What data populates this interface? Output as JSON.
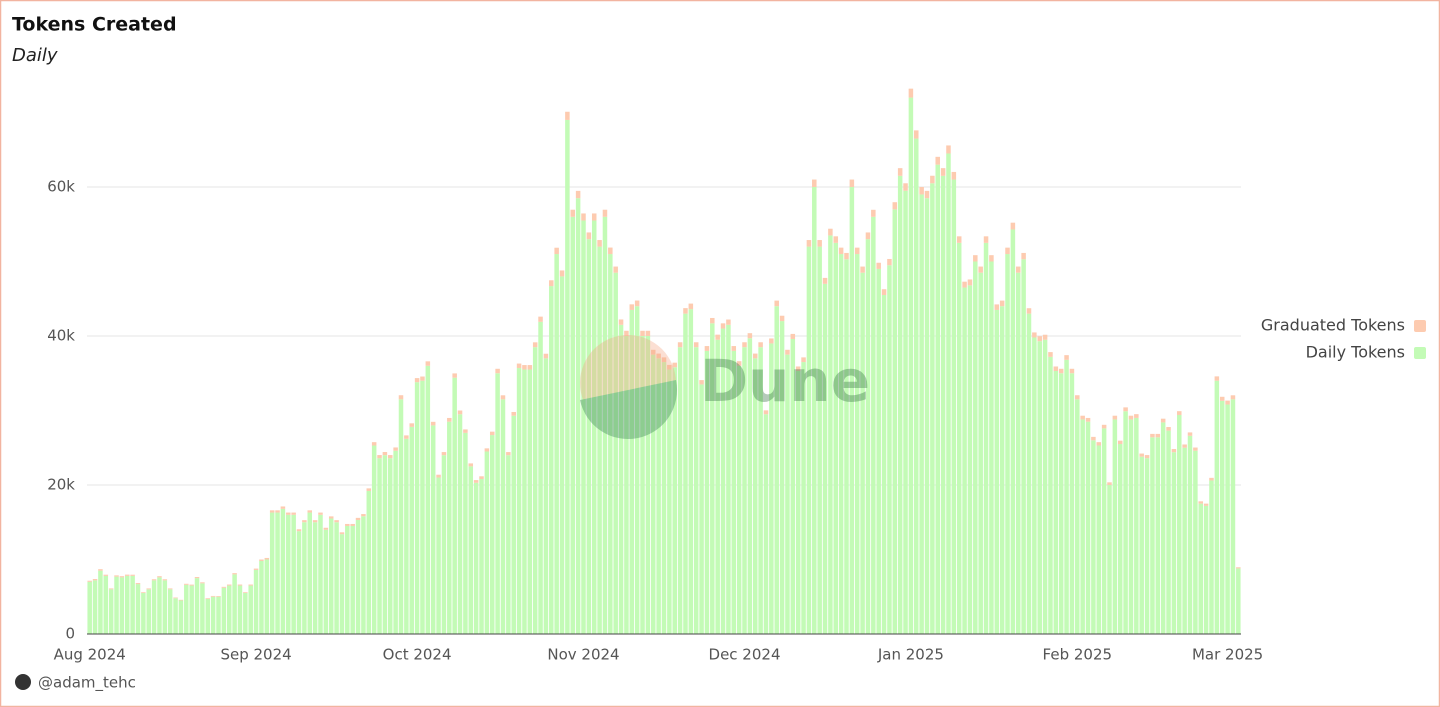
{
  "chart_data": {
    "type": "bar",
    "title": "Tokens Created",
    "subtitle": "Daily",
    "watermark": "Dune",
    "credit": "@adam_tehc",
    "stacked": true,
    "grid": true,
    "legend": "right",
    "ylim": [
      0,
      80000
    ],
    "yticks": [
      0,
      {
        "value": 20000,
        "label": "20k"
      },
      {
        "value": 40000,
        "label": "40k"
      },
      {
        "value": 60000,
        "label": "60k"
      }
    ],
    "categories": [
      "Aug 2024",
      null,
      null,
      null,
      null,
      null,
      null,
      null,
      null,
      null,
      null,
      null,
      null,
      null,
      null,
      null,
      null,
      null,
      null,
      null,
      null,
      null,
      null,
      null,
      null,
      null,
      null,
      null,
      null,
      null,
      null,
      "Sep 2024",
      null,
      null,
      null,
      null,
      null,
      null,
      null,
      null,
      null,
      null,
      null,
      null,
      null,
      null,
      null,
      null,
      null,
      null,
      null,
      null,
      null,
      null,
      null,
      null,
      null,
      null,
      null,
      null,
      null,
      "Oct 2024",
      null,
      null,
      null,
      null,
      null,
      null,
      null,
      null,
      null,
      null,
      null,
      null,
      null,
      null,
      null,
      null,
      null,
      null,
      null,
      null,
      null,
      null,
      null,
      null,
      null,
      null,
      null,
      null,
      null,
      null,
      "Nov 2024",
      null,
      null,
      null,
      null,
      null,
      null,
      null,
      null,
      null,
      null,
      null,
      null,
      null,
      null,
      null,
      null,
      null,
      null,
      null,
      null,
      null,
      null,
      null,
      null,
      null,
      null,
      null,
      null,
      null,
      "Dec 2024",
      null,
      null,
      null,
      null,
      null,
      null,
      null,
      null,
      null,
      null,
      null,
      null,
      null,
      null,
      null,
      null,
      null,
      null,
      null,
      null,
      null,
      null,
      null,
      null,
      null,
      null,
      null,
      null,
      null,
      null,
      "Jan 2025",
      null,
      null,
      null,
      null,
      null,
      null,
      null,
      null,
      null,
      null,
      null,
      null,
      null,
      null,
      null,
      null,
      null,
      null,
      null,
      null,
      null,
      null,
      null,
      null,
      null,
      null,
      null,
      null,
      null,
      null,
      "Feb 2025",
      null,
      null,
      null,
      null,
      null,
      null,
      null,
      null,
      null,
      null,
      null,
      null,
      null,
      null,
      null,
      null,
      null,
      null,
      null,
      null,
      null,
      null,
      null,
      null,
      null,
      null,
      null,
      "Mar 2025",
      null,
      null
    ],
    "series": [
      {
        "name": "Graduated Tokens",
        "color": "#fdcbb0",
        "values": [
          150,
          180,
          200,
          160,
          120,
          170,
          160,
          170,
          160,
          140,
          110,
          120,
          150,
          160,
          150,
          120,
          100,
          90,
          140,
          130,
          150,
          140,
          100,
          110,
          100,
          130,
          140,
          170,
          140,
          110,
          140,
          180,
          200,
          210,
          300,
          300,
          320,
          300,
          300,
          260,
          280,
          300,
          280,
          300,
          260,
          290,
          280,
          250,
          270,
          270,
          290,
          300,
          350,
          450,
          420,
          430,
          420,
          440,
          550,
          460,
          480,
          550,
          560,
          600,
          480,
          380,
          420,
          500,
          580,
          500,
          460,
          400,
          360,
          370,
          420,
          460,
          600,
          540,
          420,
          500,
          600,
          600,
          600,
          650,
          700,
          620,
          780,
          850,
          800,
          1100,
          950,
          980,
          950,
          900,
          950,
          880,
          950,
          870,
          820,
          720,
          700,
          750,
          760,
          700,
          700,
          650,
          640,
          630,
          620,
          620,
          660,
          740,
          750,
          660,
          580,
          650,
          720,
          680,
          700,
          710,
          650,
          620,
          660,
          680,
          640,
          660,
          520,
          670,
          750,
          720,
          650,
          680,
          610,
          630,
          880,
          1000,
          880,
          800,
          900,
          880,
          860,
          850,
          1000,
          860,
          820,
          900,
          940,
          830,
          780,
          840,
          960,
          1030,
          1000,
          1200,
          1100,
          1000,
          980,
          1010,
          1050,
          1030,
          1080,
          1020,
          880,
          790,
          790,
          850,
          820,
          880,
          850,
          740,
          750,
          860,
          910,
          820,
          850,
          730,
          680,
          670,
          670,
          640,
          610,
          600,
          630,
          600,
          550,
          500,
          500,
          460,
          450,
          480,
          360,
          500,
          450,
          520,
          500,
          510,
          420,
          420,
          460,
          460,
          500,
          480,
          430,
          510,
          440,
          460,
          430,
          310,
          300,
          360,
          580,
          540,
          530,
          540,
          160
        ]
      },
      {
        "name": "Daily Tokens",
        "color": "#c3fbb6",
        "values": [
          7000,
          7200,
          8500,
          7800,
          6000,
          7700,
          7600,
          7800,
          7800,
          6700,
          5500,
          6000,
          7200,
          7600,
          7200,
          6000,
          4800,
          4500,
          6600,
          6500,
          7500,
          6800,
          4700,
          5000,
          5000,
          6200,
          6500,
          8000,
          6500,
          5500,
          6500,
          8600,
          9800,
          10000,
          16300,
          16300,
          16800,
          16000,
          16000,
          13800,
          15000,
          16300,
          15000,
          16000,
          14000,
          15500,
          15000,
          13400,
          14500,
          14500,
          15300,
          15800,
          19200,
          25300,
          23600,
          24000,
          23600,
          24600,
          31500,
          26200,
          27800,
          33800,
          34000,
          36000,
          28000,
          21000,
          24000,
          28500,
          34400,
          29500,
          27000,
          22500,
          20300,
          20800,
          24500,
          26700,
          35000,
          31500,
          24000,
          29300,
          35700,
          35500,
          35500,
          38500,
          41900,
          37000,
          46700,
          51000,
          48000,
          69000,
          56000,
          58500,
          55500,
          53000,
          55500,
          52000,
          56000,
          51000,
          48500,
          41500,
          40000,
          43500,
          44000,
          40000,
          40000,
          37500,
          37000,
          36500,
          35500,
          35800,
          38500,
          43000,
          43600,
          38500,
          33500,
          38000,
          41700,
          39500,
          41000,
          41500,
          38000,
          36000,
          38500,
          39700,
          37000,
          38500,
          29500,
          39000,
          44000,
          42000,
          37500,
          39600,
          35300,
          36500,
          52000,
          60000,
          52000,
          47000,
          53500,
          52500,
          51000,
          50300,
          60000,
          51000,
          48500,
          53000,
          56000,
          49000,
          45500,
          49500,
          57000,
          61500,
          59500,
          72000,
          66500,
          59000,
          58500,
          60500,
          63000,
          61500,
          64500,
          61000,
          52500,
          46500,
          46800,
          50000,
          48500,
          52500,
          50000,
          43500,
          44000,
          51000,
          54300,
          48500,
          50300,
          43000,
          39800,
          39300,
          39500,
          37200,
          35300,
          35000,
          36800,
          35000,
          31500,
          28800,
          28500,
          26000,
          25300,
          27600,
          20000,
          28800,
          25500,
          29900,
          28800,
          29000,
          23800,
          23600,
          26400,
          26400,
          28400,
          27300,
          24400,
          29400,
          25000,
          26600,
          24600,
          17500,
          17200,
          20600,
          34000,
          31300,
          30800,
          31500,
          8800
        ]
      }
    ]
  }
}
